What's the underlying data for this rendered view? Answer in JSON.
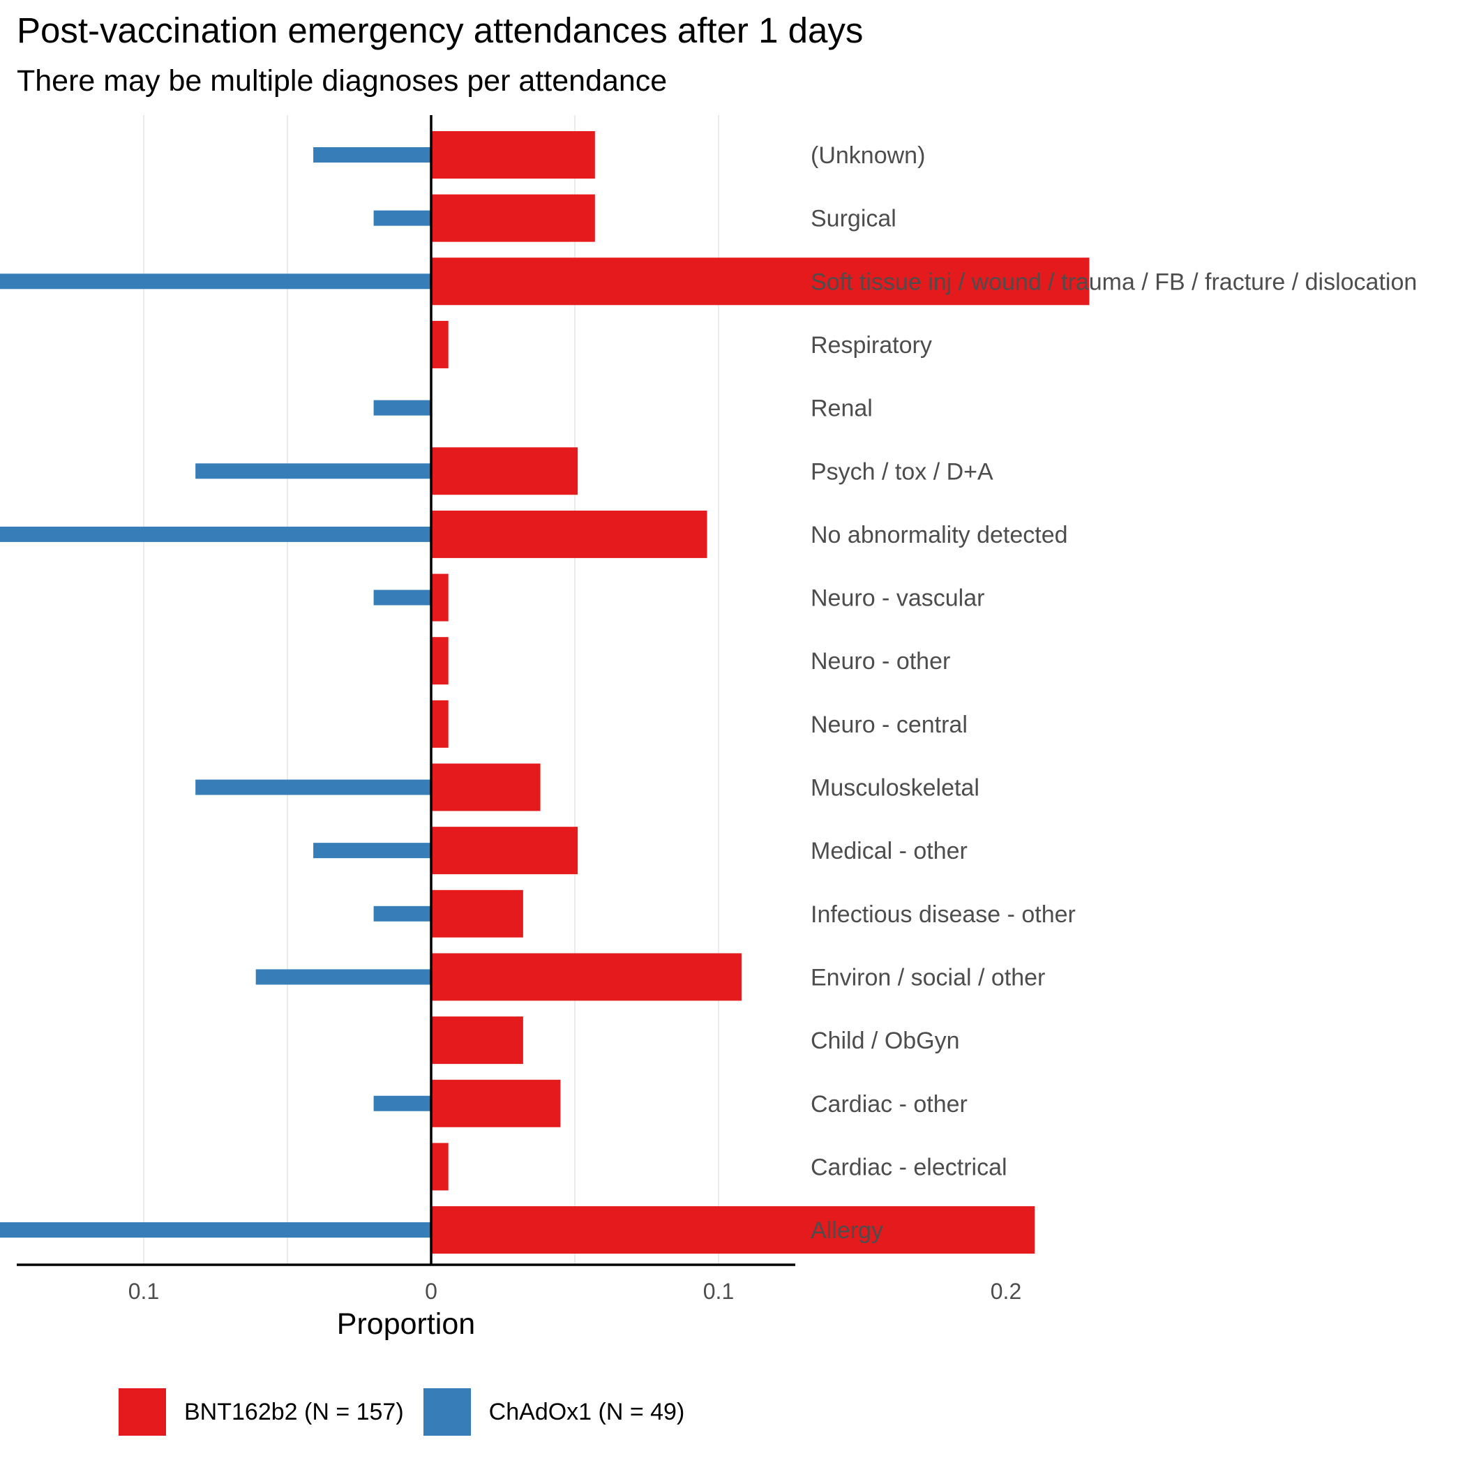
{
  "chart_data": {
    "type": "bar",
    "orientation": "horizontal-diverging",
    "title": "Post-vaccination emergency attendances after 1 days",
    "subtitle": "There may be multiple diagnoses per attendance",
    "xlabel": "Proportion",
    "ylabel": "",
    "x_ticks": [
      -0.2,
      -0.1,
      0,
      0.1,
      0.2
    ],
    "x_tick_labels": [
      "0.2",
      "0.1",
      "0",
      "0.1",
      "0.2"
    ],
    "xlim": [
      -0.28,
      0.25
    ],
    "grid": true,
    "legend_position": "bottom",
    "categories": [
      "(Unknown)",
      "Surgical",
      "Soft tissue inj / wound / trauma / FB / fracture / dislocation",
      "Respiratory",
      "Renal",
      "Psych / tox / D+A",
      "No abnormality detected",
      "Neuro - vascular",
      "Neuro - other",
      "Neuro - central",
      "Musculoskeletal",
      "Medical - other",
      "Infectious disease - other",
      "Environ / social / other",
      "Child / ObGyn",
      "Cardiac - other",
      "Cardiac - electrical",
      "Allergy"
    ],
    "series": [
      {
        "name": "BNT162b2 (N = 157)",
        "color": "#e41a1c",
        "side": "right",
        "values": [
          0.057,
          0.057,
          0.229,
          0.006,
          0.0,
          0.051,
          0.096,
          0.006,
          0.006,
          0.006,
          0.038,
          0.051,
          0.032,
          0.108,
          0.032,
          0.045,
          0.006,
          0.21
        ]
      },
      {
        "name": "ChAdOx1 (N = 49)",
        "color": "#377eb8",
        "side": "left",
        "values": [
          0.041,
          0.02,
          0.163,
          0.0,
          0.02,
          0.082,
          0.265,
          0.02,
          0.0,
          0.0,
          0.082,
          0.041,
          0.02,
          0.061,
          0.0,
          0.02,
          0.0,
          0.224
        ]
      }
    ]
  }
}
